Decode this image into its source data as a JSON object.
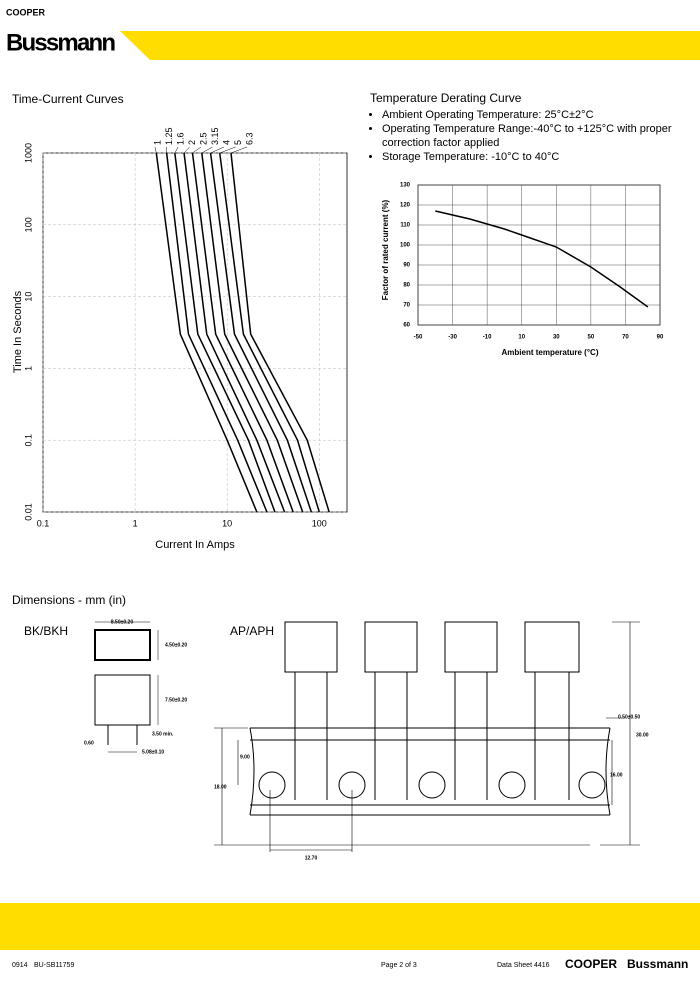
{
  "header": {
    "brand_small": "COOPER",
    "brand": "Bussmann"
  },
  "chart_data": [
    {
      "type": "line",
      "title": "Time-Current Curves",
      "x_label": "Current In Amps",
      "y_label": "Time In Seconds",
      "xscale": "log",
      "yscale": "log",
      "xlim": [
        0.1,
        200
      ],
      "ylim": [
        0.01,
        1000
      ],
      "xticks": [
        0.1,
        1,
        10,
        100
      ],
      "yticks": [
        0.01,
        0.1,
        1,
        10,
        100,
        1000
      ],
      "grid": true,
      "series": [
        {
          "name": "1",
          "color": "#000000",
          "x": [
            1.7,
            3.1,
            10,
            21
          ],
          "values": [
            1000,
            3,
            0.1,
            0.01
          ]
        },
        {
          "name": "1.25",
          "color": "#000000",
          "x": [
            2.2,
            3.8,
            13,
            27
          ],
          "values": [
            1000,
            3,
            0.1,
            0.01
          ]
        },
        {
          "name": "1.6",
          "color": "#000000",
          "x": [
            2.7,
            4.8,
            17,
            33
          ],
          "values": [
            1000,
            3,
            0.1,
            0.01
          ]
        },
        {
          "name": "2",
          "color": "#000000",
          "x": [
            3.4,
            6,
            21,
            42
          ],
          "values": [
            1000,
            3,
            0.1,
            0.01
          ]
        },
        {
          "name": "2.5",
          "color": "#000000",
          "x": [
            4.2,
            7.5,
            27,
            52
          ],
          "values": [
            1000,
            3,
            0.1,
            0.01
          ]
        },
        {
          "name": "3.15",
          "color": "#000000",
          "x": [
            5.3,
            9.4,
            35,
            66
          ],
          "values": [
            1000,
            3,
            0.1,
            0.01
          ]
        },
        {
          "name": "4",
          "color": "#000000",
          "x": [
            6.6,
            12,
            45,
            82
          ],
          "values": [
            1000,
            3,
            0.1,
            0.01
          ]
        },
        {
          "name": "5",
          "color": "#000000",
          "x": [
            8.3,
            15,
            58,
            100
          ],
          "values": [
            1000,
            3,
            0.1,
            0.01
          ]
        },
        {
          "name": "6.3",
          "color": "#000000",
          "x": [
            11,
            18,
            74,
            128
          ],
          "values": [
            1000,
            3,
            0.1,
            0.01
          ]
        }
      ]
    },
    {
      "type": "line",
      "title": "Temperature Derating Curve",
      "notes": [
        "Ambient Operating Temperature: 25°C±2°C",
        "Operating Temperature Range:-40°C to +125°C with proper correction factor applied",
        "Storage Temperature: -10°C to 40°C"
      ],
      "x_label": "Ambient temperature   (°C)",
      "y_label": "Factor of rated current   (%)",
      "xlim": [
        -50,
        90
      ],
      "ylim": [
        60,
        130
      ],
      "xticks": [
        -50,
        -30,
        -10,
        10,
        30,
        50,
        70,
        90
      ],
      "yticks": [
        60,
        70,
        80,
        90,
        100,
        110,
        120,
        130
      ],
      "grid": true,
      "color": "#000000",
      "x": [
        -40,
        -20,
        0,
        10,
        30,
        50,
        67,
        83
      ],
      "values": [
        117,
        113,
        108,
        105,
        99,
        89,
        79,
        69
      ]
    }
  ],
  "dimensions": {
    "title": "Dimensions - mm (in)",
    "bk_label": "BK/BKH",
    "ap_label": "AP/APH",
    "bk_width": "8.50±0.20",
    "bk_depth": "4.50±0.20",
    "bk_height": "7.50±0.20",
    "lead_min": "3.50 min.",
    "lead_dia": "0.60",
    "pitch": "5.08±0.10",
    "tape_tol": "0.50±0.50",
    "tape_a": "9.00",
    "tape_b": "18.00",
    "hole_pitch": "12.70",
    "total": "30.00",
    "tape_c": "16.00"
  },
  "footer": {
    "code": "0914",
    "doc": "BU-SB11759",
    "page": "Page 2 of 3",
    "sheet": "Data Sheet 4416",
    "brand_cooper": "COOPER",
    "brand": "Bussmann"
  }
}
